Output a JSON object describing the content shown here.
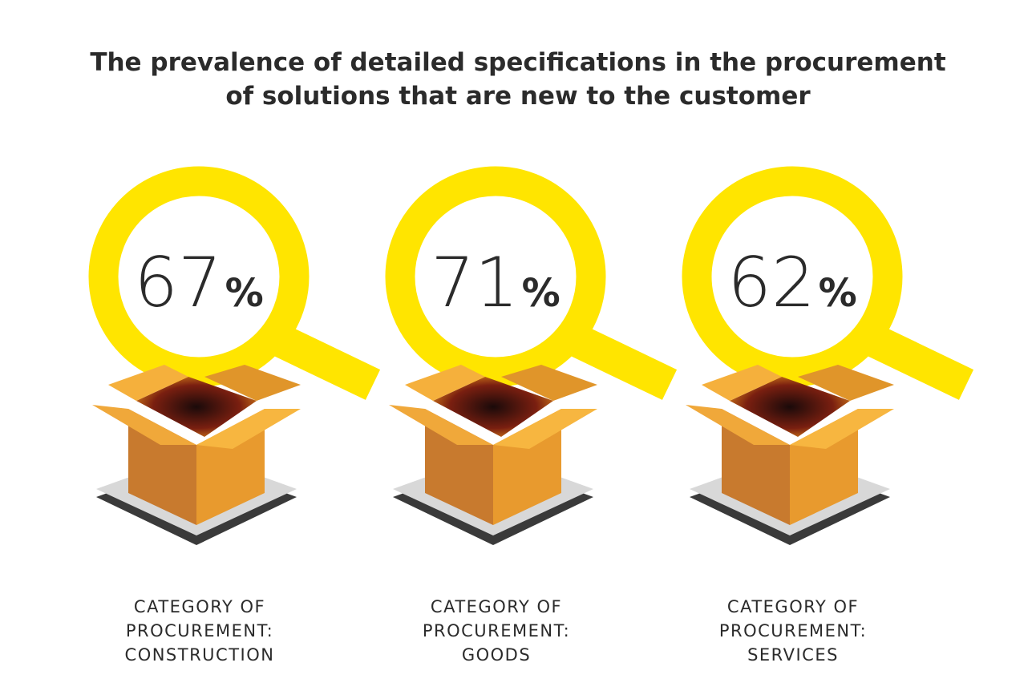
{
  "title": [
    "The prevalence of detailed specifications in the procurement",
    "of solutions that are new to the customer"
  ],
  "items": [
    {
      "value": 67,
      "unit": "%",
      "label": [
        "CATEGORY OF",
        "PROCUREMENT:",
        "CONSTRUCTION"
      ]
    },
    {
      "value": 71,
      "unit": "%",
      "label": [
        "CATEGORY OF",
        "PROCUREMENT:",
        "GOODS"
      ]
    },
    {
      "value": 62,
      "unit": "%",
      "label": [
        "CATEGORY OF",
        "PROCUREMENT:",
        "SERVICES"
      ]
    }
  ]
}
